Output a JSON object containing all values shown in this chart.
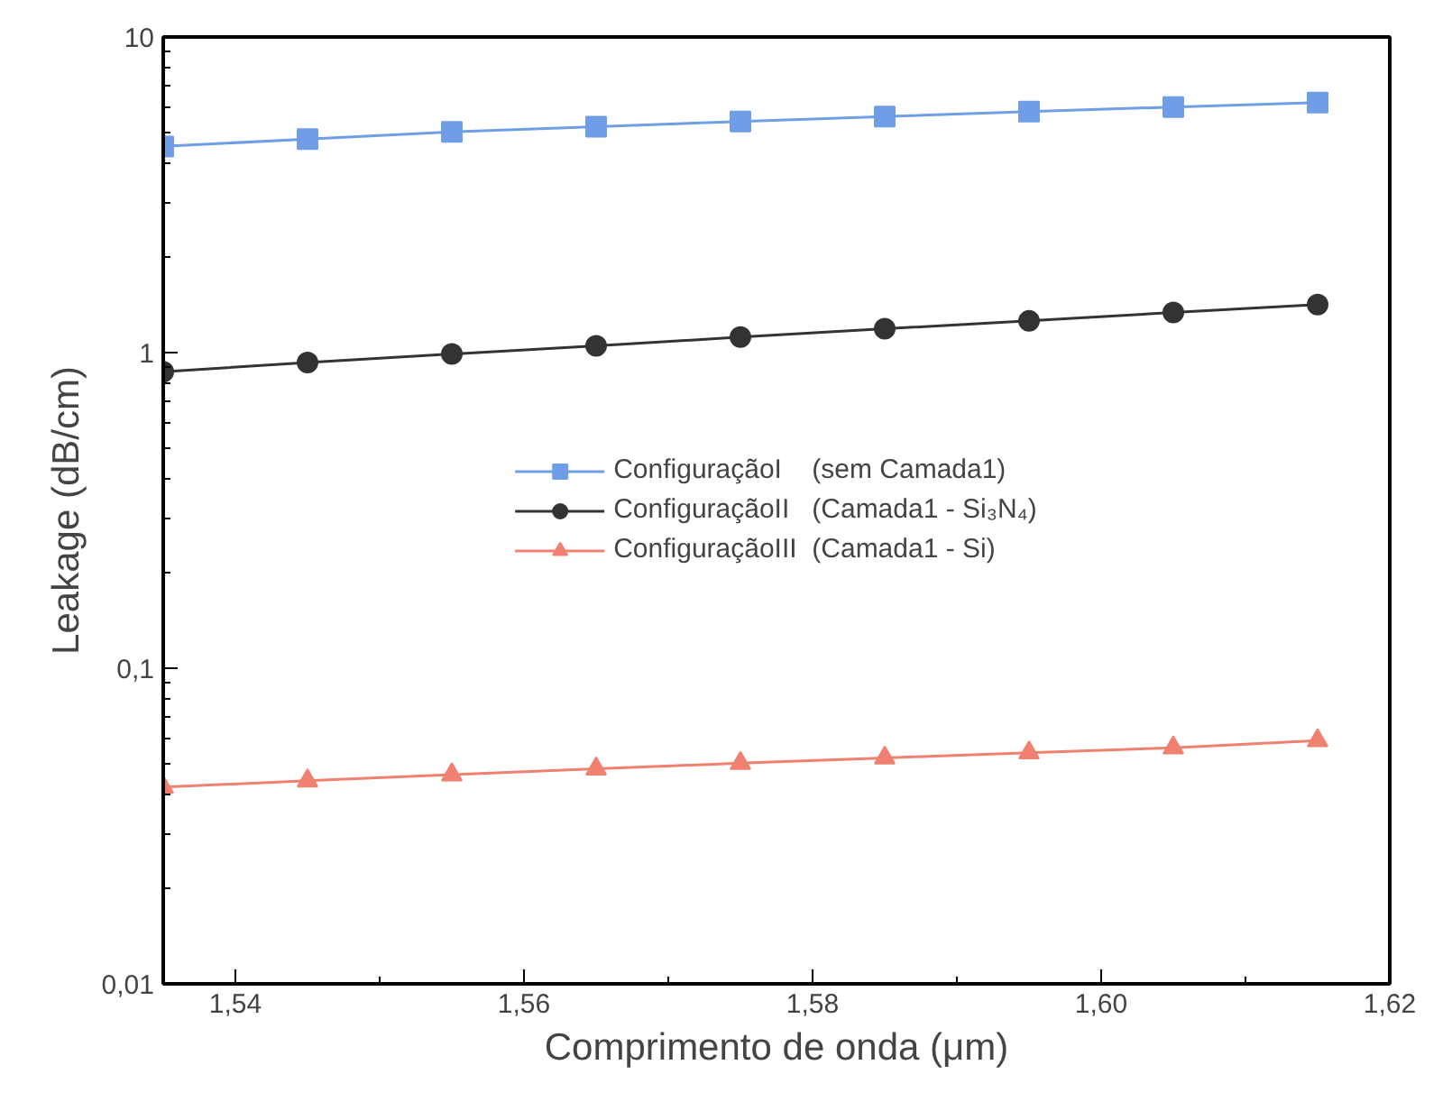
{
  "chart_data": {
    "type": "line",
    "xlabel": "Comprimento de onda (μm)",
    "ylabel": "Leakage (dB/cm)",
    "x": [
      1.535,
      1.545,
      1.555,
      1.565,
      1.575,
      1.585,
      1.595,
      1.605,
      1.615
    ],
    "series": [
      {
        "name": "ConfiguraçãoI    (sem Camada1)",
        "color": "#6f9ee6",
        "marker": "square",
        "values": [
          4.5,
          4.75,
          5.0,
          5.2,
          5.4,
          5.6,
          5.8,
          6.0,
          6.2
        ]
      },
      {
        "name": "ConfiguraçãoII   (Camada1 - Si₃N₄)",
        "color": "#333333",
        "marker": "circle",
        "values": [
          0.87,
          0.93,
          0.99,
          1.05,
          1.12,
          1.19,
          1.26,
          1.34,
          1.42
        ]
      },
      {
        "name": "ConfiguraçãoIII  (Camada1 - Si)",
        "color": "#f08070",
        "marker": "triangle",
        "values": [
          0.042,
          0.044,
          0.046,
          0.048,
          0.05,
          0.052,
          0.054,
          0.056,
          0.059
        ]
      }
    ],
    "log": "y",
    "xlim": [
      1.535,
      1.62
    ],
    "ylim": [
      0.01,
      10
    ],
    "xticks": [
      {
        "value": 1.54,
        "label": "1,54"
      },
      {
        "value": 1.56,
        "label": "1,56"
      },
      {
        "value": 1.58,
        "label": "1,58"
      },
      {
        "value": 1.6,
        "label": "1,60"
      },
      {
        "value": 1.62,
        "label": "1,62"
      }
    ],
    "yticks": [
      {
        "value": 0.01,
        "label": "0,01"
      },
      {
        "value": 0.1,
        "label": "0,1"
      },
      {
        "value": 1,
        "label": "1"
      },
      {
        "value": 10,
        "label": "10"
      }
    ],
    "grid": false,
    "legend": "center",
    "line_style": "solid"
  }
}
